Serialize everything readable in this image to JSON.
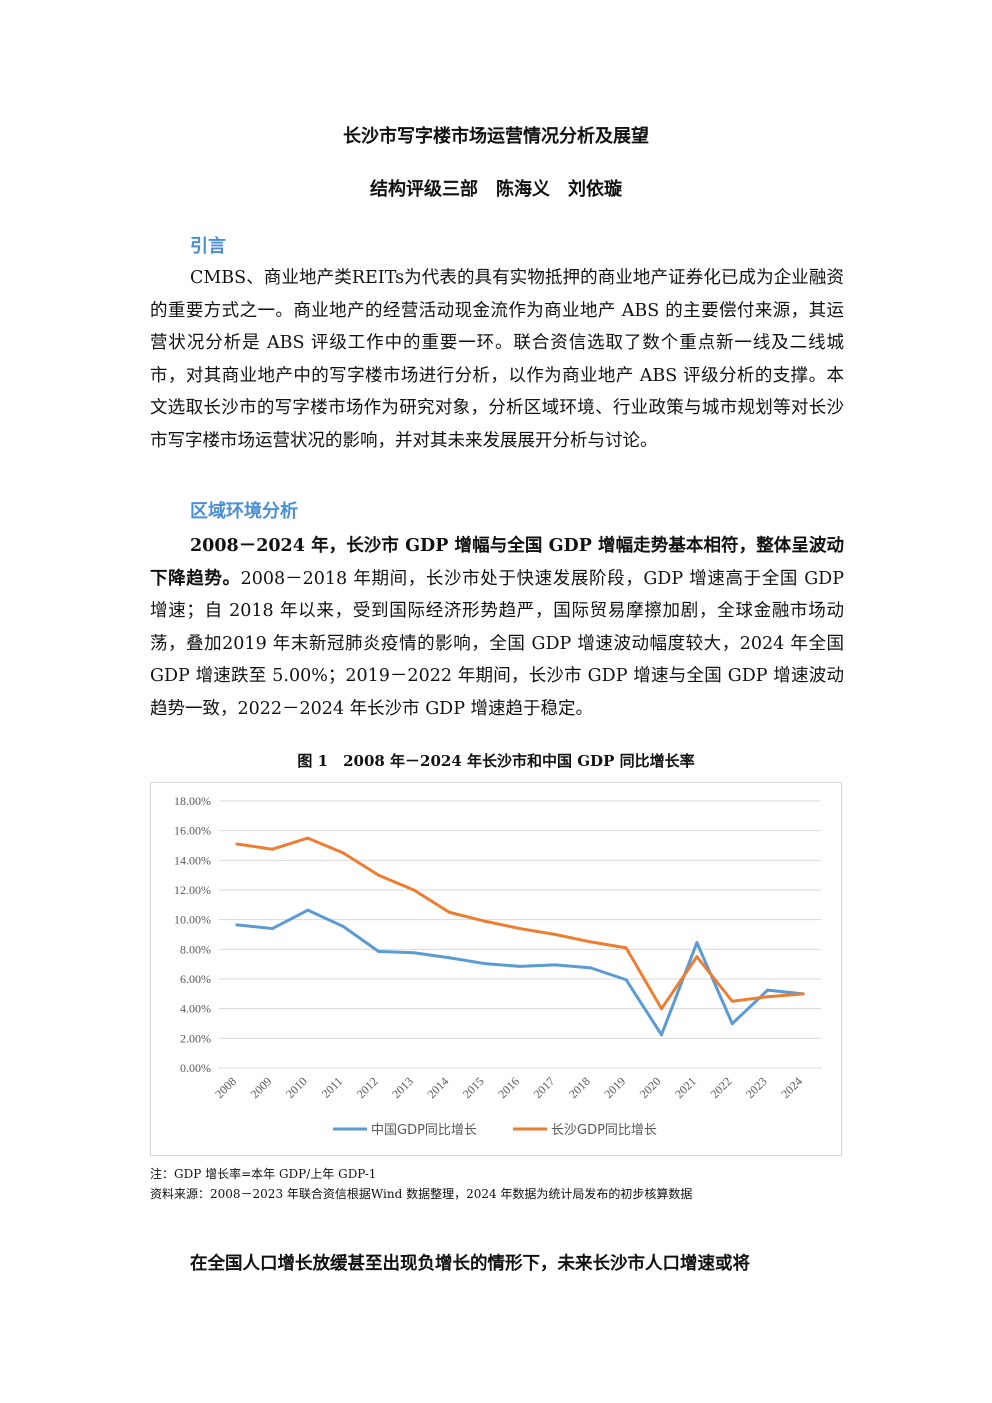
{
  "title": "长沙市写字楼市场运营情况分析及展望",
  "authors": "结构评级三部　陈海义　刘依璇",
  "sections": {
    "intro_heading": "引言",
    "region_heading": "区域环境分析"
  },
  "paragraphs": {
    "intro": "CMBS、商业地产类REITs为代表的具有实物抵押的商业地产证券化已成为企业融资的重要方式之一。商业地产的经营活动现金流作为商业地产 ABS 的主要偿付来源，其运营状况分析是 ABS 评级工作中的重要一环。联合资信选取了数个重点新一线及二线城市，对其商业地产中的写字楼市场进行分析，以作为商业地产 ABS 评级分析的支撑。本文选取长沙市的写字楼市场作为研究对象，分析区域环境、行业政策与城市规划等对长沙市写字楼市场运营状况的影响，并对其未来发展展开分析与讨论。",
    "gdp_bold": "2008－2024 年，长沙市 GDP 增幅与全国 GDP 增幅走势基本相符，整体呈波动下降趋势。",
    "gdp_rest": "2008－2018 年期间，长沙市处于快速发展阶段，GDP 增速高于全国 GDP 增速；自 2018 年以来，受到国际经济形势趋严，国际贸易摩擦加剧，全球金融市场动荡，叠加2019 年末新冠肺炎疫情的影响，全国 GDP 增速波动幅度较大，2024 年全国 GDP 增速跌至 5.00%；2019－2022 年期间，长沙市 GDP 增速与全国 GDP 增速波动趋势一致，2022－2024 年长沙市 GDP 增速趋于稳定。",
    "population_bold": "在全国人口增长放缓甚至出现负增长的情形下，未来长沙市人口增速或将"
  },
  "figure": {
    "caption": "图 1　2008 年－2024 年长沙市和中国 GDP 同比增长率"
  },
  "notes": {
    "note1": "注：GDP 增长率=本年 GDP/上年 GDP-1",
    "source": "资料来源：2008－2023 年联合资信根据Wind 数据整理，2024 年数据为统计局发布的初步核算数据"
  },
  "chart_data": {
    "type": "line",
    "categories": [
      "2008",
      "2009",
      "2010",
      "2011",
      "2012",
      "2013",
      "2014",
      "2015",
      "2016",
      "2017",
      "2018",
      "2019",
      "2020",
      "2021",
      "2022",
      "2023",
      "2024"
    ],
    "series": [
      {
        "name": "中国GDP同比增长",
        "color": "#5b9bd5",
        "values": [
          9.65,
          9.4,
          10.64,
          9.55,
          7.86,
          7.77,
          7.43,
          7.04,
          6.85,
          6.95,
          6.75,
          5.95,
          2.24,
          8.45,
          2.99,
          5.25,
          5.0
        ]
      },
      {
        "name": "长沙GDP同比增长",
        "color": "#ed7d31",
        "values": [
          15.1,
          14.75,
          15.5,
          14.5,
          13.0,
          12.0,
          10.5,
          9.9,
          9.4,
          9.0,
          8.5,
          8.1,
          4.0,
          7.5,
          4.5,
          4.8,
          5.0
        ]
      }
    ],
    "yticks": [
      "0.00%",
      "2.00%",
      "4.00%",
      "6.00%",
      "8.00%",
      "10.00%",
      "12.00%",
      "14.00%",
      "16.00%",
      "18.00%"
    ],
    "ylim": [
      0,
      18
    ],
    "grid": true,
    "legend": "bottom"
  }
}
